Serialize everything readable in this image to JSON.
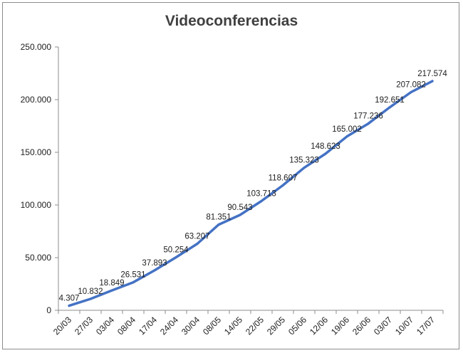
{
  "chart_data": {
    "type": "line",
    "title": "Videoconferencias",
    "xlabel": "",
    "ylabel": "",
    "ylim": [
      0,
      250000
    ],
    "yticks": [
      "0",
      "50.000",
      "100.000",
      "150.000",
      "200.000",
      "250.000"
    ],
    "ytick_values": [
      0,
      50000,
      100000,
      150000,
      200000,
      250000
    ],
    "grid": false,
    "legend": "none",
    "series_color": "#4472c4",
    "categories": [
      "20/03",
      "27/03",
      "03/04",
      "08/04",
      "17/04",
      "24/04",
      "30/04",
      "08/05",
      "14/05",
      "22/05",
      "29/05",
      "05/06",
      "12/06",
      "19/06",
      "26/06",
      "03/07",
      "10/07",
      "17/07"
    ],
    "values": [
      4307,
      10832,
      18849,
      26531,
      37893,
      50254,
      63207,
      81351,
      90543,
      103713,
      118607,
      135323,
      148623,
      165002,
      177236,
      192651,
      207082,
      217574
    ],
    "data_labels": [
      "4.307",
      "10.832",
      "18.849",
      "26.531",
      "37.893",
      "50.254",
      "63.207",
      "81.351",
      "90.543",
      "103.713",
      "118.607",
      "135.323",
      "148.623",
      "165.002",
      "177.236",
      "192.651",
      "207.082",
      "217.574"
    ]
  }
}
